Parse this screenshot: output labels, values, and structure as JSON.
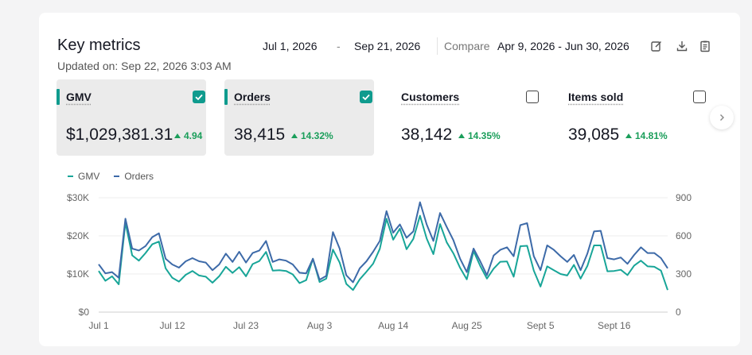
{
  "header": {
    "title": "Key metrics",
    "updated": "Updated on: Sep 22, 2026 3:03 AM"
  },
  "date_range": {
    "start": "Jul 1, 2026",
    "separator": "-",
    "end": "Sep 21, 2026",
    "compare_label": "Compare",
    "compare_range": "Apr 9, 2026 - Jun 30, 2026"
  },
  "toolbar": {
    "icons": [
      "edit-icon",
      "download-icon",
      "clipboard-icon"
    ]
  },
  "metrics": [
    {
      "label": "GMV",
      "value": "$1,029,381.31",
      "delta": "4.94",
      "selected": true
    },
    {
      "label": "Orders",
      "value": "38,415",
      "delta": "14.32%",
      "selected": true
    },
    {
      "label": "Customers",
      "value": "38,142",
      "delta": "14.35%",
      "selected": false
    },
    {
      "label": "Items sold",
      "value": "39,085",
      "delta": "14.81%",
      "selected": false
    }
  ],
  "colors": {
    "gmv": "#18a598",
    "orders": "#3d6aa8",
    "accent": "#0f9b8e",
    "positive": "#1a9e5a"
  },
  "chart_data": {
    "type": "line",
    "legend": [
      "GMV",
      "Orders"
    ],
    "legend_position": "top-left",
    "x_tick_labels": [
      "Jul 1",
      "Jul 12",
      "Jul 23",
      "Aug 3",
      "Aug 14",
      "Aug 25",
      "Sept 5",
      "Sept 16"
    ],
    "x_tick_index": [
      0,
      11,
      22,
      33,
      44,
      55,
      66,
      77
    ],
    "y_left_ticks": [
      "$0",
      "$10K",
      "$20K",
      "$30K"
    ],
    "y_left_range": [
      0,
      30000
    ],
    "y_right_ticks": [
      "0",
      "300",
      "600",
      "900"
    ],
    "y_right_range": [
      0,
      900
    ],
    "grid": true,
    "series": [
      {
        "name": "GMV",
        "axis": "left",
        "values": [
          10800,
          8200,
          9400,
          7300,
          23500,
          14900,
          13500,
          15500,
          17800,
          18500,
          11500,
          9000,
          8000,
          9800,
          10800,
          9600,
          9300,
          7700,
          9400,
          11900,
          10300,
          11800,
          9400,
          12600,
          13400,
          15800,
          10900,
          11000,
          10800,
          9900,
          7600,
          8400,
          14000,
          7900,
          8800,
          16400,
          13000,
          7400,
          5800,
          8600,
          10600,
          12700,
          16600,
          24500,
          19000,
          21900,
          16500,
          19200,
          25300,
          19300,
          15200,
          23100,
          18300,
          15400,
          11600,
          8600,
          16000,
          12100,
          8800,
          11400,
          13200,
          13300,
          9300,
          17300,
          17400,
          10900,
          6700,
          12000,
          11000,
          10000,
          9600,
          12400,
          8800,
          12100,
          17500,
          17500,
          10700,
          10800,
          11100,
          9700,
          12200,
          13500,
          12000,
          11900,
          10900,
          5800
        ]
      },
      {
        "name": "Orders",
        "axis": "right",
        "values": [
          376,
          305,
          315,
          270,
          735,
          500,
          485,
          520,
          590,
          620,
          420,
          375,
          350,
          400,
          425,
          400,
          390,
          330,
          375,
          460,
          395,
          475,
          390,
          465,
          485,
          560,
          395,
          415,
          405,
          375,
          310,
          305,
          420,
          255,
          285,
          630,
          500,
          290,
          235,
          345,
          400,
          475,
          560,
          795,
          625,
          690,
          585,
          635,
          865,
          690,
          560,
          780,
          670,
          565,
          420,
          315,
          500,
          400,
          290,
          445,
          490,
          510,
          440,
          685,
          700,
          440,
          330,
          525,
          490,
          440,
          395,
          450,
          330,
          460,
          635,
          640,
          425,
          415,
          430,
          380,
          450,
          510,
          465,
          465,
          425,
          345
        ]
      }
    ]
  }
}
